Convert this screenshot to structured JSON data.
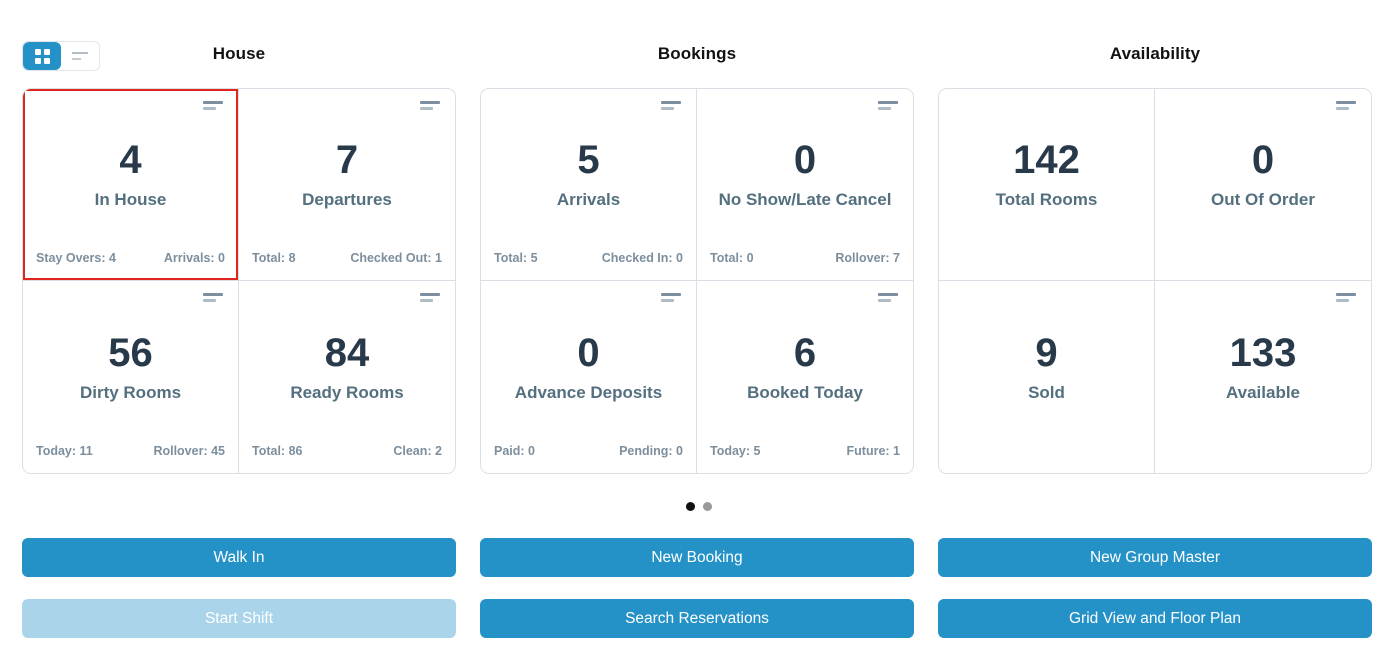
{
  "colors": {
    "accent_blue": "#2492C7",
    "disabled_button_blue": "#A9D4EA",
    "selected_card_border": "#E0261C",
    "card_border": "#D9DFE4",
    "value_text": "#28394A",
    "label_text": "#54707F",
    "footer_text": "#7D8E9D"
  },
  "view_toggle": {
    "active_view": "grid"
  },
  "sections": [
    {
      "title": "House",
      "cards": [
        {
          "value": "4",
          "label": "In House",
          "selected": true,
          "menu_icon": true,
          "footer_left": "Stay Overs: 4",
          "footer_right": "Arrivals: 0"
        },
        {
          "value": "7",
          "label": "Departures",
          "selected": false,
          "menu_icon": true,
          "footer_left": "Total: 8",
          "footer_right": "Checked Out: 1"
        },
        {
          "value": "56",
          "label": "Dirty Rooms",
          "selected": false,
          "menu_icon": true,
          "footer_left": "Today: 11",
          "footer_right": "Rollover: 45"
        },
        {
          "value": "84",
          "label": "Ready Rooms",
          "selected": false,
          "menu_icon": true,
          "footer_left": "Total: 86",
          "footer_right": "Clean: 2"
        }
      ]
    },
    {
      "title": "Bookings",
      "cards": [
        {
          "value": "5",
          "label": "Arrivals",
          "selected": false,
          "menu_icon": true,
          "footer_left": "Total: 5",
          "footer_right": "Checked In: 0"
        },
        {
          "value": "0",
          "label": "No Show/Late Cancel",
          "selected": false,
          "menu_icon": true,
          "footer_left": "Total: 0",
          "footer_right": "Rollover: 7"
        },
        {
          "value": "0",
          "label": "Advance Deposits",
          "selected": false,
          "menu_icon": true,
          "footer_left": "Paid: 0",
          "footer_right": "Pending: 0"
        },
        {
          "value": "6",
          "label": "Booked Today",
          "selected": false,
          "menu_icon": true,
          "footer_left": "Today: 5",
          "footer_right": "Future: 1"
        }
      ]
    },
    {
      "title": "Availability",
      "cards": [
        {
          "value": "142",
          "label": "Total Rooms",
          "selected": false,
          "menu_icon": false,
          "footer_left": "",
          "footer_right": ""
        },
        {
          "value": "0",
          "label": "Out Of Order",
          "selected": false,
          "menu_icon": true,
          "footer_left": "",
          "footer_right": ""
        },
        {
          "value": "9",
          "label": "Sold",
          "selected": false,
          "menu_icon": false,
          "footer_left": "",
          "footer_right": ""
        },
        {
          "value": "133",
          "label": "Available",
          "selected": false,
          "menu_icon": true,
          "footer_left": "",
          "footer_right": ""
        }
      ]
    }
  ],
  "pagination": {
    "total_dots": 2,
    "active_dot_index": 0
  },
  "actions": {
    "row1": [
      {
        "label": "Walk In",
        "disabled": false
      },
      {
        "label": "New Booking",
        "disabled": false
      },
      {
        "label": "New Group Master",
        "disabled": false
      }
    ],
    "row2": [
      {
        "label": "Start Shift",
        "disabled": true
      },
      {
        "label": "Search Reservations",
        "disabled": false
      },
      {
        "label": "Grid View and Floor Plan",
        "disabled": false
      }
    ]
  }
}
